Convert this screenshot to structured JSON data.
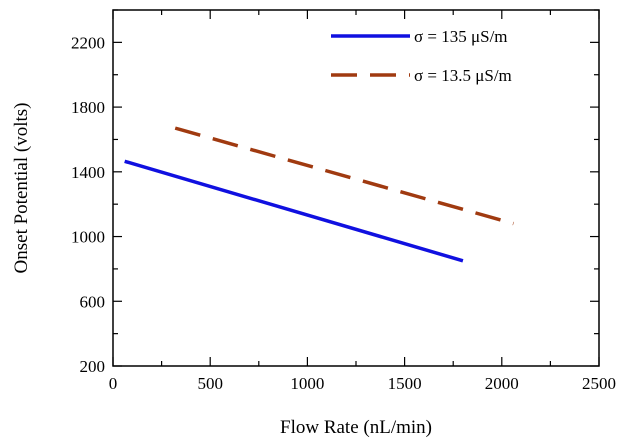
{
  "chart_data": {
    "type": "line",
    "xlabel": "Flow Rate (nL/min)",
    "ylabel": "Onset  Potential (volts)",
    "xlim": [
      0,
      2500
    ],
    "ylim": [
      200,
      2400
    ],
    "xticks": [
      0,
      500,
      1000,
      1500,
      2000,
      2500
    ],
    "yticks": [
      200,
      600,
      1000,
      1400,
      1800,
      2200
    ],
    "grid": false,
    "legend_position": "top-right",
    "series": [
      {
        "name": "σ = 135 μS/m",
        "color": "#1010e0",
        "style": "solid",
        "x": [
          60,
          1800
        ],
        "y": [
          1465,
          850
        ]
      },
      {
        "name": "σ = 13.5 μS/m",
        "color": "#a03a10",
        "style": "dashed",
        "x": [
          320,
          2060
        ],
        "y": [
          1670,
          1080
        ]
      }
    ]
  }
}
